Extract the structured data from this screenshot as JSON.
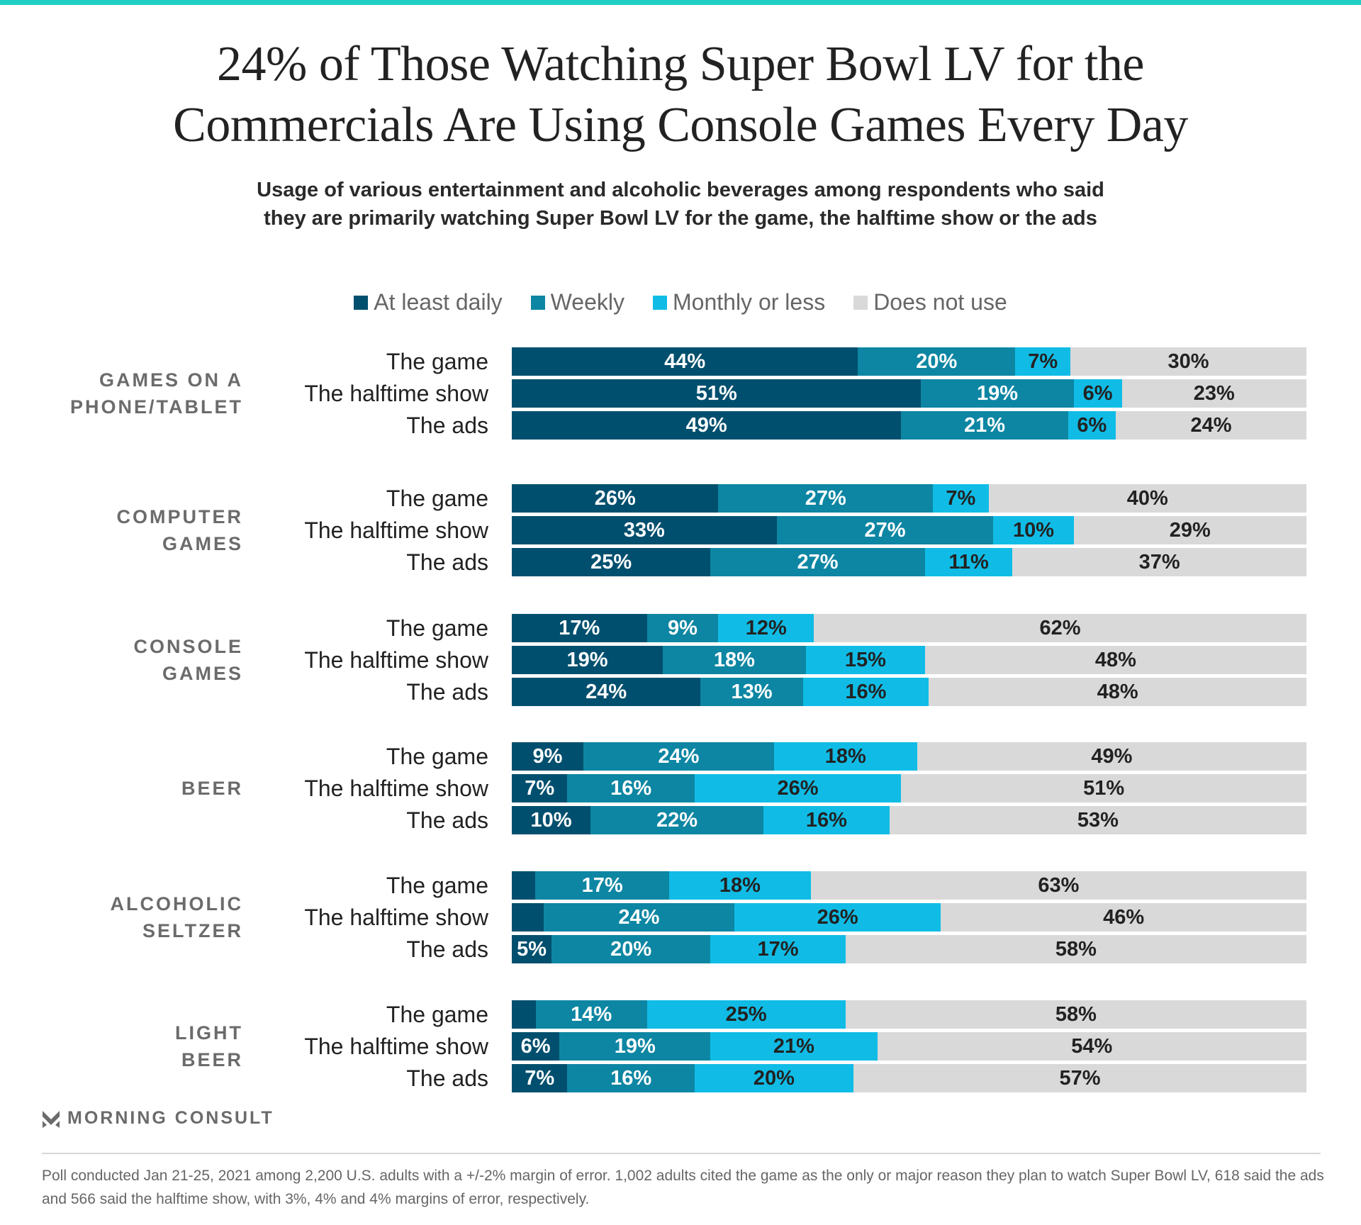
{
  "colors": {
    "accent": "#20cfc4",
    "daily": "#004f6e",
    "weekly": "#0d86a3",
    "monthly": "#10bce6",
    "none": "#d9d9d9"
  },
  "title_lines": [
    "24% of Those Watching Super Bowl LV for the",
    "Commercials Are Using Console Games Every Day"
  ],
  "subtitle_lines": [
    "Usage of various entertainment and alcoholic beverages among respondents who said",
    "they are primarily watching Super Bowl LV for the game, the halftime show or the ads"
  ],
  "chart_data": {
    "type": "bar",
    "stacked": true,
    "orientation": "horizontal",
    "title": "24% of Those Watching Super Bowl LV for the Commercials Are Using Console Games Every Day",
    "legend": [
      "At least daily",
      "Weekly",
      "Monthly or less",
      "Does not use"
    ],
    "legend_position": "top",
    "unit": "%",
    "groups": [
      {
        "name": "GAMES ON A PHONE/TABLET",
        "label_lines": [
          "GAMES ON A",
          "PHONE/TABLET"
        ],
        "rows": [
          {
            "label": "The game",
            "values": [
              44,
              20,
              7,
              30
            ]
          },
          {
            "label": "The halftime show",
            "values": [
              51,
              19,
              6,
              23
            ]
          },
          {
            "label": "The ads",
            "values": [
              49,
              21,
              6,
              24
            ]
          }
        ]
      },
      {
        "name": "COMPUTER GAMES",
        "label_lines": [
          "COMPUTER",
          "GAMES"
        ],
        "rows": [
          {
            "label": "The game",
            "values": [
              26,
              27,
              7,
              40
            ]
          },
          {
            "label": "The halftime show",
            "values": [
              33,
              27,
              10,
              29
            ]
          },
          {
            "label": "The ads",
            "values": [
              25,
              27,
              11,
              37
            ]
          }
        ]
      },
      {
        "name": "CONSOLE GAMES",
        "label_lines": [
          "CONSOLE",
          "GAMES"
        ],
        "rows": [
          {
            "label": "The game",
            "values": [
              17,
              9,
              12,
              62
            ]
          },
          {
            "label": "The halftime show",
            "values": [
              19,
              18,
              15,
              48
            ]
          },
          {
            "label": "The ads",
            "values": [
              24,
              13,
              16,
              48
            ]
          }
        ]
      },
      {
        "name": "BEER",
        "label_lines": [
          "BEER"
        ],
        "rows": [
          {
            "label": "The game",
            "values": [
              9,
              24,
              18,
              49
            ]
          },
          {
            "label": "The halftime show",
            "values": [
              7,
              16,
              26,
              51
            ]
          },
          {
            "label": "The ads",
            "values": [
              10,
              22,
              16,
              53
            ]
          }
        ]
      },
      {
        "name": "ALCOHOLIC SELTZER",
        "label_lines": [
          "ALCOHOLIC",
          "SELTZER"
        ],
        "rows": [
          {
            "label": "The game",
            "values": [
              3,
              17,
              18,
              63
            ],
            "hidden_labels": [
              0
            ]
          },
          {
            "label": "The halftime show",
            "values": [
              4,
              24,
              26,
              46
            ],
            "hidden_labels": [
              0
            ]
          },
          {
            "label": "The ads",
            "values": [
              5,
              20,
              17,
              58
            ]
          }
        ]
      },
      {
        "name": "LIGHT BEER",
        "label_lines": [
          "LIGHT",
          "BEER"
        ],
        "rows": [
          {
            "label": "The game",
            "values": [
              3,
              14,
              25,
              58
            ],
            "hidden_labels": [
              0
            ]
          },
          {
            "label": "The halftime show",
            "values": [
              6,
              19,
              21,
              54
            ]
          },
          {
            "label": "The ads",
            "values": [
              7,
              16,
              20,
              57
            ]
          }
        ]
      }
    ]
  },
  "logo_text": "MORNING CONSULT",
  "footnote": "Poll conducted Jan 21-25, 2021 among 2,200 U.S. adults with a +/-2% margin of error. 1,002 adults cited the game as the only or major reason they plan to watch Super Bowl LV, 618 said the ads and 566 said the halftime show, with 3%, 4% and 4% margins of error, respectively."
}
